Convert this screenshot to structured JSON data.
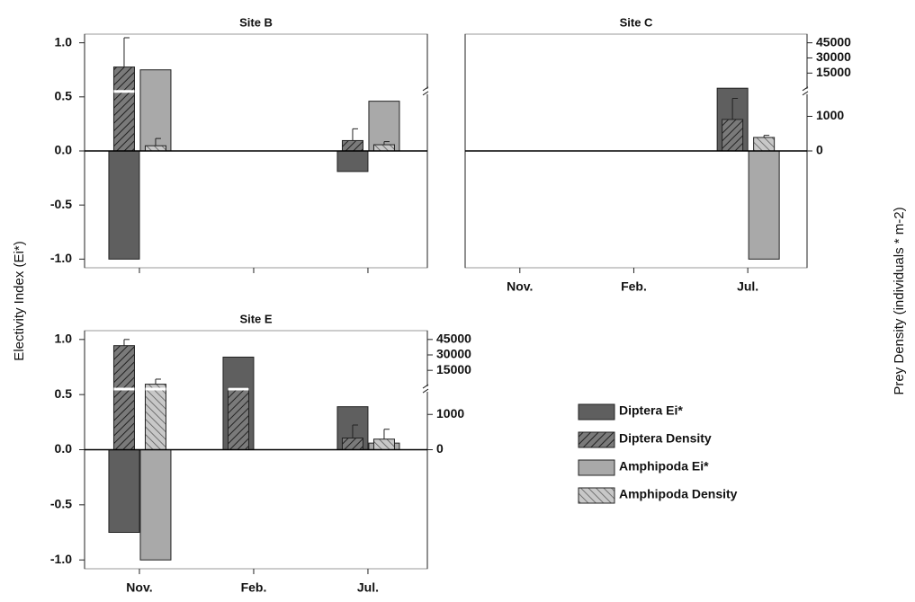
{
  "chart_data": [
    {
      "type": "bar",
      "title": "Site B",
      "ylabel": "Electivity Index (Ei*)",
      "categories": [
        null,
        null,
        null
      ],
      "ylim": [
        -1.08,
        1.08
      ],
      "yticks": [
        {
          "value": -1,
          "label": "-1.0"
        },
        {
          "value": -0.5,
          "label": "-0.5"
        },
        {
          "value": 0,
          "label": "0.0"
        },
        {
          "value": 0.5,
          "label": "0.5"
        },
        {
          "value": 1,
          "label": "1.0"
        }
      ],
      "series": [
        {
          "color": "#5f5f5f",
          "hatch": false,
          "values": [
            -1,
            null,
            -0.19
          ]
        },
        {
          "color": "#5f5f5f",
          "hatch": true,
          "axis": "y2",
          "values": [
            21000,
            null,
            300
          ],
          "errors": [
            29000,
            null,
            340
          ]
        },
        {
          "color": "#a9a9a9",
          "hatch": false,
          "values": [
            0.75,
            null,
            0.46
          ]
        },
        {
          "color": "#a9a9a9",
          "hatch": true,
          "axis": "y2",
          "values": [
            150,
            null,
            180
          ],
          "errors": [
            210,
            null,
            90
          ]
        }
      ]
    },
    {
      "type": "bar",
      "title": "Site C",
      "y2label": "Prey Density (individuals * m-2)",
      "categories": [
        "Nov.",
        "Feb.",
        "Jul."
      ],
      "ylim": [
        -1.08,
        1.08
      ],
      "y2ticks": [
        0,
        1000,
        15000,
        30000,
        45000
      ],
      "series": [
        {
          "color": "#5f5f5f",
          "hatch": false,
          "values": [
            null,
            null,
            0.58
          ]
        },
        {
          "color": "#5f5f5f",
          "hatch": true,
          "axis": "y2",
          "values": [
            null,
            null,
            910
          ],
          "errors": [
            null,
            null,
            5900
          ]
        },
        {
          "color": "#a9a9a9",
          "hatch": false,
          "values": [
            null,
            null,
            -1
          ]
        },
        {
          "color": "#a9a9a9",
          "hatch": true,
          "axis": "y2",
          "values": [
            null,
            null,
            390
          ],
          "errors": [
            null,
            null,
            60
          ]
        }
      ]
    },
    {
      "type": "bar",
      "title": "Site E",
      "categories": [
        "Nov.",
        "Feb.",
        "Jul."
      ],
      "ylim": [
        -1.08,
        1.08
      ],
      "yticks": [
        {
          "value": -1,
          "label": "-1.0"
        },
        {
          "value": -0.5,
          "label": "-0.5"
        },
        {
          "value": 0,
          "label": "0.0"
        },
        {
          "value": 0.5,
          "label": "0.5"
        },
        {
          "value": 1,
          "label": "1.0"
        }
      ],
      "y2ticks": [
        0,
        1000,
        15000,
        30000,
        45000
      ],
      "legend": "right",
      "series": [
        {
          "name": "Diptera Ei*",
          "color": "#5f5f5f",
          "hatch": false,
          "values": [
            -0.75,
            0.84,
            0.39
          ]
        },
        {
          "name": "Diptera Density",
          "color": "#5f5f5f",
          "hatch": true,
          "axis": "y2",
          "values": [
            39000,
            9500,
            330
          ],
          "errors": [
            6000,
            null,
            370
          ]
        },
        {
          "name": "Amphipoda Ei*",
          "color": "#a9a9a9",
          "hatch": false,
          "values": [
            -1,
            null,
            0.06
          ]
        },
        {
          "name": "Amphipoda Density",
          "color": "#a9a9a9",
          "hatch": true,
          "axis": "y2",
          "values": [
            10600,
            null,
            300
          ],
          "errors": [
            1600,
            null,
            280
          ]
        }
      ]
    }
  ]
}
